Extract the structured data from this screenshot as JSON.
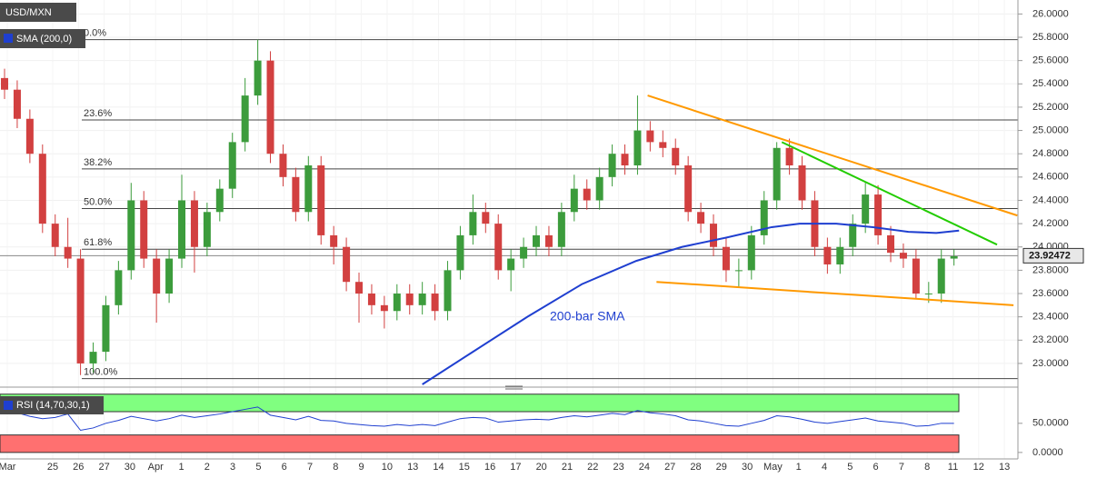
{
  "chart_data": {
    "type": "candlestick",
    "title": "USD/MXN",
    "ylim": [
      22.82,
      26.12
    ],
    "yticks": [
      {
        "value": 23.0,
        "label": "23.0000"
      },
      {
        "value": 23.2,
        "label": "23.2000"
      },
      {
        "value": 23.4,
        "label": "23.4000"
      },
      {
        "value": 23.6,
        "label": "23.6000"
      },
      {
        "value": 23.8,
        "label": "23.8000"
      },
      {
        "value": 24.0,
        "label": "24.0000"
      },
      {
        "value": 24.2,
        "label": "24.2000"
      },
      {
        "value": 24.4,
        "label": "24.4000"
      },
      {
        "value": 24.6,
        "label": "24.6000"
      },
      {
        "value": 24.8,
        "label": "24.8000"
      },
      {
        "value": 25.0,
        "label": "25.0000"
      },
      {
        "value": 25.2,
        "label": "25.2000"
      },
      {
        "value": 25.4,
        "label": "25.4000"
      },
      {
        "value": 25.6,
        "label": "25.6000"
      },
      {
        "value": 25.8,
        "label": "25.8000"
      },
      {
        "value": 26.0,
        "label": "26.0000"
      }
    ],
    "xlim": [
      -0.36,
      80.05
    ],
    "x_labels": [
      "Mar",
      "25",
      "26",
      "27",
      "30",
      "Apr",
      "1",
      "2",
      "3",
      "5",
      "6",
      "7",
      "8",
      "9",
      "10",
      "13",
      "14",
      "15",
      "16",
      "17",
      "20",
      "21",
      "22",
      "23",
      "24",
      "27",
      "28",
      "29",
      "30",
      "May",
      "1",
      "4",
      "5",
      "6",
      "7",
      "8",
      "11",
      "12",
      "13"
    ],
    "up_color": "#3c9c3c",
    "down_color": "#d24040",
    "candles": [
      [
        25.45,
        25.53,
        25.27,
        25.35
      ],
      [
        25.35,
        25.43,
        25.02,
        25.1
      ],
      [
        25.1,
        25.18,
        24.72,
        24.8
      ],
      [
        24.8,
        24.88,
        24.12,
        24.2
      ],
      [
        24.2,
        24.28,
        23.92,
        24.0
      ],
      [
        24.0,
        24.25,
        23.82,
        23.9
      ],
      [
        23.9,
        23.98,
        22.9,
        23.0
      ],
      [
        23.0,
        23.18,
        22.92,
        23.1
      ],
      [
        23.1,
        23.58,
        23.02,
        23.5
      ],
      [
        23.5,
        23.88,
        23.42,
        23.8
      ],
      [
        23.8,
        24.55,
        23.72,
        24.4
      ],
      [
        24.4,
        24.48,
        23.82,
        23.9
      ],
      [
        23.9,
        23.98,
        23.35,
        23.6
      ],
      [
        23.6,
        23.98,
        23.52,
        23.9
      ],
      [
        23.9,
        24.62,
        23.82,
        24.4
      ],
      [
        24.4,
        24.48,
        23.78,
        24.0
      ],
      [
        24.0,
        24.38,
        23.92,
        24.3
      ],
      [
        24.3,
        24.58,
        24.22,
        24.5
      ],
      [
        24.5,
        24.98,
        24.42,
        24.9
      ],
      [
        24.9,
        25.45,
        24.82,
        25.3
      ],
      [
        25.3,
        25.78,
        25.22,
        25.6
      ],
      [
        25.6,
        25.68,
        24.72,
        24.8
      ],
      [
        24.8,
        24.88,
        24.52,
        24.6
      ],
      [
        24.6,
        24.68,
        24.22,
        24.3
      ],
      [
        24.3,
        24.78,
        24.22,
        24.7
      ],
      [
        24.7,
        24.78,
        24.02,
        24.1
      ],
      [
        24.1,
        24.18,
        23.85,
        24.0
      ],
      [
        24.0,
        24.08,
        23.62,
        23.7
      ],
      [
        23.7,
        23.78,
        23.35,
        23.6
      ],
      [
        23.6,
        23.68,
        23.42,
        23.5
      ],
      [
        23.5,
        23.58,
        23.3,
        23.45
      ],
      [
        23.45,
        23.68,
        23.37,
        23.6
      ],
      [
        23.6,
        23.68,
        23.42,
        23.5
      ],
      [
        23.5,
        23.7,
        23.42,
        23.6
      ],
      [
        23.6,
        23.68,
        23.37,
        23.45
      ],
      [
        23.45,
        23.88,
        23.37,
        23.8
      ],
      [
        23.8,
        24.18,
        23.72,
        24.1
      ],
      [
        24.1,
        24.45,
        24.02,
        24.3
      ],
      [
        24.3,
        24.38,
        24.12,
        24.2
      ],
      [
        24.2,
        24.28,
        23.72,
        23.8
      ],
      [
        23.8,
        23.98,
        23.62,
        23.9
      ],
      [
        23.9,
        24.08,
        23.82,
        24.0
      ],
      [
        24.0,
        24.18,
        23.92,
        24.1
      ],
      [
        24.1,
        24.18,
        23.92,
        24.0
      ],
      [
        24.0,
        24.38,
        23.92,
        24.3
      ],
      [
        24.3,
        24.62,
        24.22,
        24.5
      ],
      [
        24.5,
        24.58,
        24.32,
        24.4
      ],
      [
        24.4,
        24.68,
        24.32,
        24.6
      ],
      [
        24.6,
        24.88,
        24.52,
        24.8
      ],
      [
        24.8,
        24.88,
        24.62,
        24.7
      ],
      [
        24.7,
        25.3,
        24.62,
        25.0
      ],
      [
        25.0,
        25.08,
        24.82,
        24.9
      ],
      [
        24.9,
        25.0,
        24.77,
        24.85
      ],
      [
        24.85,
        24.93,
        24.62,
        24.7
      ],
      [
        24.7,
        24.78,
        24.22,
        24.3
      ],
      [
        24.3,
        24.38,
        24.12,
        24.2
      ],
      [
        24.2,
        24.28,
        23.92,
        24.0
      ],
      [
        24.0,
        24.08,
        23.7,
        23.8
      ],
      [
        23.8,
        23.9,
        23.66,
        23.8
      ],
      [
        23.8,
        24.18,
        23.72,
        24.1
      ],
      [
        24.1,
        24.48,
        24.02,
        24.4
      ],
      [
        24.4,
        24.9,
        24.32,
        24.85
      ],
      [
        24.85,
        24.93,
        24.62,
        24.7
      ],
      [
        24.7,
        24.78,
        24.32,
        24.4
      ],
      [
        24.4,
        24.48,
        23.92,
        24.0
      ],
      [
        24.0,
        24.08,
        23.77,
        23.85
      ],
      [
        23.85,
        24.08,
        23.77,
        24.0
      ],
      [
        24.0,
        24.28,
        23.92,
        24.2
      ],
      [
        24.2,
        24.55,
        24.12,
        24.45
      ],
      [
        24.45,
        24.53,
        24.02,
        24.1
      ],
      [
        24.1,
        24.18,
        23.87,
        23.95
      ],
      [
        23.95,
        24.03,
        23.82,
        23.9
      ],
      [
        23.9,
        23.98,
        23.55,
        23.6
      ],
      [
        23.6,
        23.7,
        23.52,
        23.6
      ],
      [
        23.6,
        23.98,
        23.52,
        23.9
      ],
      [
        23.9,
        23.98,
        23.84,
        23.92
      ]
    ],
    "sma": {
      "name": "SMA (200,0)",
      "color": "#1f3fd0",
      "x": [
        33,
        37,
        41.3,
        45.6,
        49.9,
        53.5,
        57,
        60.6,
        62.8,
        65.7,
        68.6,
        71.4,
        73.6,
        75.4
      ],
      "values": [
        22.82,
        23.1,
        23.4,
        23.68,
        23.88,
        24.0,
        24.08,
        24.17,
        24.2,
        24.2,
        24.17,
        24.13,
        24.12,
        24.14
      ]
    },
    "annotation": "200-bar SMA",
    "fib_start": 6.1,
    "fib_levels": [
      {
        "label": "0.0%",
        "value": 25.78
      },
      {
        "label": "23.6%",
        "value": 25.09
      },
      {
        "label": "38.2%",
        "value": 24.67
      },
      {
        "label": "50.0%",
        "value": 24.33
      },
      {
        "label": "61.8%",
        "value": 23.98
      },
      {
        "label": "100.0%",
        "value": 22.87
      }
    ],
    "trendlines": [
      {
        "color": "#ff9900",
        "x": [
          50.8,
          80
        ],
        "values": [
          25.3,
          24.27
        ]
      },
      {
        "color": "#22cc00",
        "x": [
          61.4,
          78.4
        ],
        "values": [
          24.9,
          24.02
        ]
      },
      {
        "color": "#ff9900",
        "x": [
          51.5,
          79.7
        ],
        "values": [
          23.7,
          23.5
        ]
      }
    ],
    "last_price": {
      "value": 23.92472,
      "label": "23.92472"
    },
    "rsi": {
      "name": "RSI (14,70,30,1)",
      "upper": 70,
      "lower": 30,
      "ylim": [
        -8,
        109
      ],
      "yticks": [
        {
          "value": 50,
          "label": "50.0000"
        },
        {
          "value": 0,
          "label": "0.0000"
        }
      ],
      "values": [
        72,
        68,
        62,
        58,
        60,
        66,
        38,
        42,
        50,
        55,
        62,
        58,
        54,
        58,
        64,
        60,
        63,
        66,
        70,
        74,
        78,
        64,
        60,
        56,
        62,
        55,
        54,
        50,
        48,
        46,
        45,
        48,
        46,
        48,
        46,
        52,
        58,
        60,
        59,
        52,
        54,
        56,
        57,
        56,
        60,
        63,
        61,
        64,
        67,
        65,
        72,
        68,
        66,
        63,
        56,
        54,
        50,
        46,
        45,
        50,
        55,
        63,
        61,
        57,
        52,
        50,
        53,
        56,
        59,
        54,
        52,
        50,
        45,
        46,
        50,
        50
      ]
    }
  }
}
